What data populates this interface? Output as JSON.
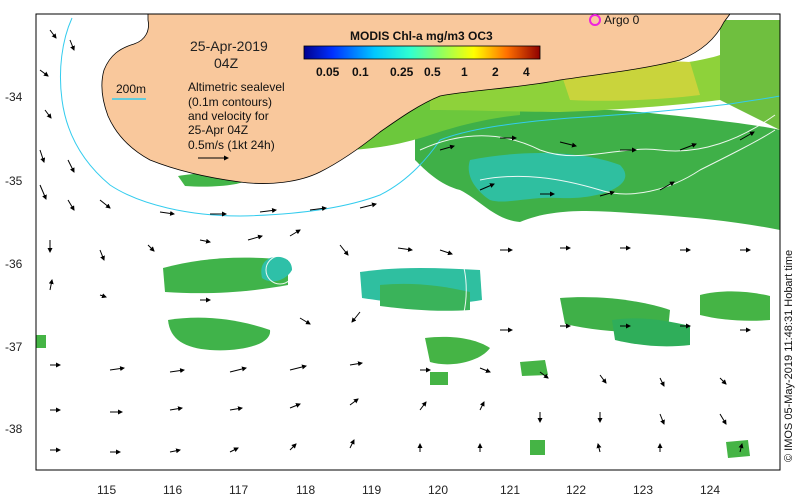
{
  "map": {
    "date": "25-Apr-2019",
    "time": "04Z",
    "notes": [
      "Altimetric sealevel",
      "(0.1m contours)",
      "and velocity for",
      "25-Apr 04Z",
      "0.5m/s (1kt 24h)"
    ],
    "isobath_label": "200m",
    "argo_label": "Argo 0",
    "colorbar_title": "MODIS Chl-a mg/m3 OC3",
    "colorbar_ticks": [
      "0.05",
      "0.1",
      "0.25",
      "0.5",
      "1",
      "2",
      "4"
    ],
    "credit": "© IMOS 05-May-2019 11:48:31 Hobart time",
    "lon_ticks": [
      "115",
      "116",
      "117",
      "118",
      "119",
      "120",
      "121",
      "122",
      "123",
      "124"
    ],
    "lat_ticks": [
      "-34",
      "-35",
      "-36",
      "-37",
      "-38"
    ],
    "colors": {
      "land": "#f9c89c",
      "isobath": "#33ccee",
      "argo": "#ee22dd",
      "arrow": "#000000"
    }
  }
}
